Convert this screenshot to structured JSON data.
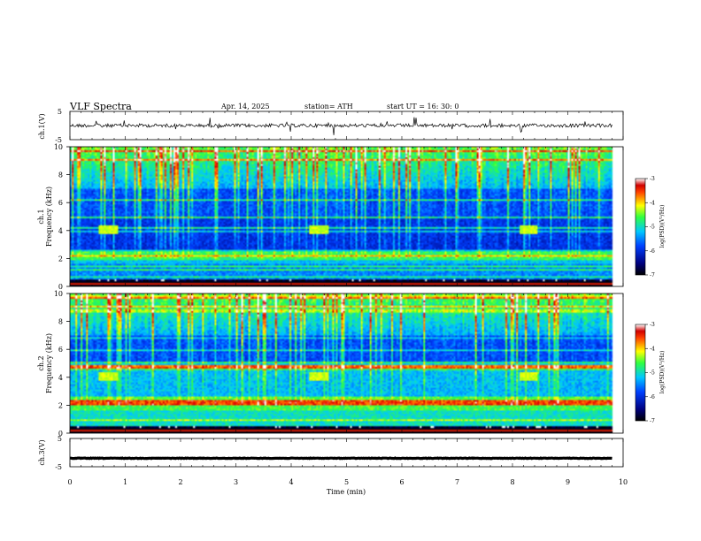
{
  "header": {
    "title": "VLF  Spectra",
    "date": "Apr. 14, 2025",
    "station": "station= ATH",
    "start": "start  UT  =   16: 30: 0"
  },
  "chart_data": [
    {
      "type": "line",
      "panel": "ch1-waveform",
      "ylabel": "ch.1(V)",
      "yticks": [
        "5",
        "-5"
      ],
      "ylim": [
        -5,
        5
      ],
      "xlim": [
        0,
        10
      ],
      "description_level": 0,
      "trace_color": "#000000"
    },
    {
      "type": "heatmap",
      "panel": "ch1-spectrogram",
      "ylabel": "ch.1\nFrequency (kHz)",
      "ylabel_line1": "ch.1",
      "ylabel_line2": "Frequency (kHz)",
      "yticks": [
        "0",
        "2",
        "4",
        "6",
        "8",
        "10"
      ],
      "ylim": [
        0,
        10
      ],
      "xlim": [
        0,
        9.8
      ],
      "colorbar": {
        "label": "log(PSD)(V²/Hz)",
        "ticks": [
          "-3",
          "-4",
          "-5",
          "-6",
          "-7"
        ],
        "range": [
          -7,
          -3
        ]
      },
      "bursts_min": [
        0.5,
        4.3,
        8.1
      ],
      "burst_freq_khz": [
        3.7,
        4.4
      ]
    },
    {
      "type": "heatmap",
      "panel": "ch2-spectrogram",
      "ylabel_line1": "ch.2",
      "ylabel_line2": "Frequency (kHz)",
      "yticks": [
        "0",
        "2",
        "4",
        "6",
        "8",
        "10"
      ],
      "ylim": [
        0,
        10
      ],
      "xlim": [
        0,
        9.8
      ],
      "colorbar": {
        "label": "log(PSD)(V²/Hz)",
        "ticks": [
          "-3",
          "-4",
          "-5",
          "-6",
          "-7"
        ],
        "range": [
          -7,
          -3
        ]
      },
      "bursts_min": [
        0.5,
        4.3,
        8.1
      ],
      "burst_freq_khz": [
        3.7,
        4.4
      ]
    },
    {
      "type": "line",
      "panel": "ch3-waveform",
      "ylabel": "ch.3(V)",
      "yticks": [
        "5",
        "-5"
      ],
      "ylim": [
        -5,
        5
      ],
      "xlim": [
        0,
        10
      ],
      "description_level": -2,
      "trace_color": "#000000"
    }
  ],
  "xaxis": {
    "label": "Time  (min)",
    "ticks": [
      "0",
      "1",
      "2",
      "3",
      "4",
      "5",
      "6",
      "7",
      "8",
      "9",
      "10"
    ]
  }
}
